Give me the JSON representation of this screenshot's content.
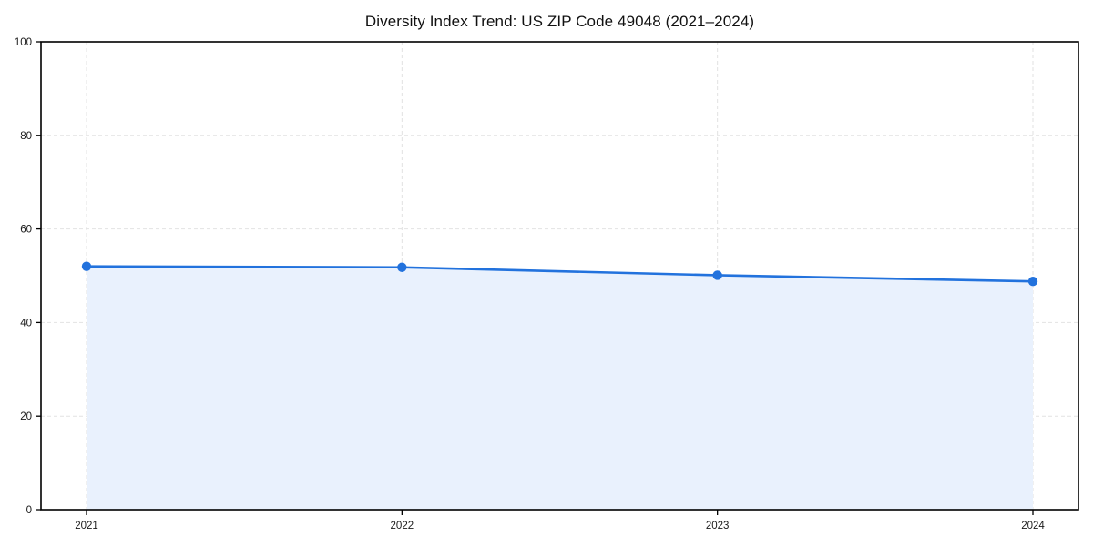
{
  "chart_data": {
    "type": "line",
    "title": "Diversity Index Trend: US ZIP Code 49048 (2021–2024)",
    "categories": [
      "2021",
      "2022",
      "2023",
      "2024"
    ],
    "values": [
      52.0,
      51.8,
      50.1,
      48.8
    ],
    "xlabel": "",
    "ylabel": "",
    "ylim": [
      0,
      100
    ],
    "yticks": [
      0,
      20,
      40,
      60,
      80,
      100
    ],
    "grid": true,
    "grid_style": "dashed",
    "legend_position": "none",
    "line_color": "#2272dd",
    "marker_color": "#2272dd",
    "area_fill": true,
    "fill_color": "#e9f1fd",
    "axis_color": "#000000",
    "grid_color": "#e2e2e2",
    "background_color": "#ffffff"
  }
}
